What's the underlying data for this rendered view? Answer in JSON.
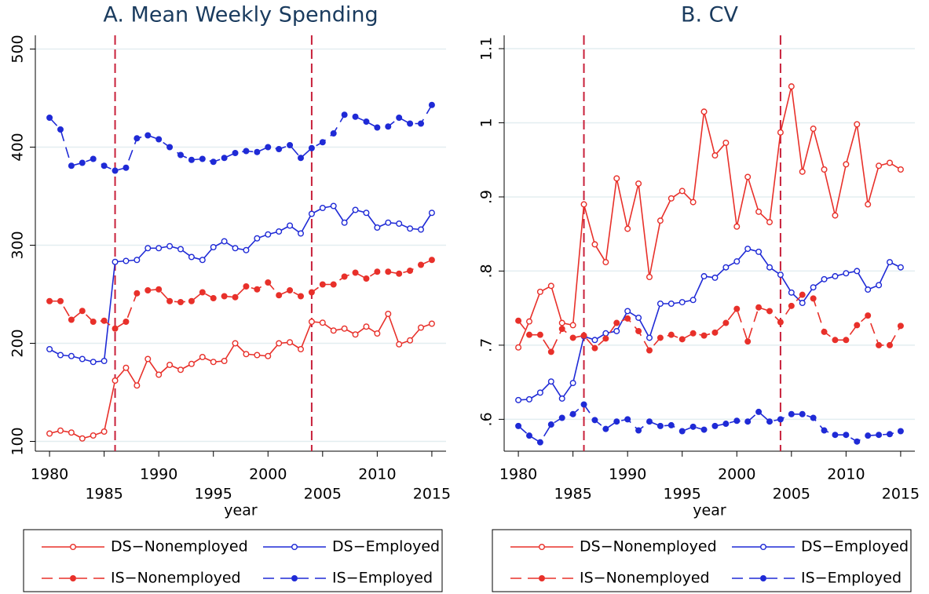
{
  "chart_data": [
    {
      "type": "line",
      "title": "A. Mean Weekly Spending",
      "x_label": "year",
      "x": [
        1980,
        1981,
        1982,
        1983,
        1984,
        1985,
        1986,
        1987,
        1988,
        1989,
        1990,
        1991,
        1992,
        1993,
        1994,
        1995,
        1996,
        1997,
        1998,
        1999,
        2000,
        2001,
        2002,
        2003,
        2004,
        2005,
        2006,
        2007,
        2008,
        2009,
        2010,
        2011,
        2012,
        2013,
        2014,
        2015
      ],
      "xlim": [
        1978.7,
        2016.3
      ],
      "xticks": [
        1980,
        1985,
        1990,
        1995,
        2000,
        2005,
        2010,
        2015
      ],
      "ylim": [
        90,
        514
      ],
      "yticks": [
        100,
        200,
        300,
        400,
        500
      ],
      "grid": true,
      "vlines": [
        1986,
        2004
      ],
      "vline_color": "#c8203a",
      "series": [
        {
          "name": "DS−Nonemployed",
          "color": "#e8302a",
          "dash": false,
          "marker": "open",
          "values": [
            108,
            111,
            109,
            103,
            106,
            110,
            162,
            175,
            157,
            184,
            168,
            178,
            173,
            179,
            186,
            181,
            182,
            200,
            189,
            188,
            187,
            200,
            201,
            194,
            222,
            221,
            213,
            215,
            209,
            217,
            210,
            230,
            199,
            203,
            216,
            220
          ]
        },
        {
          "name": "DS−Employed",
          "color": "#1f2ad6",
          "dash": false,
          "marker": "open",
          "values": [
            194,
            188,
            187,
            184,
            181,
            182,
            283,
            284,
            285,
            297,
            297,
            299,
            296,
            288,
            285,
            298,
            304,
            297,
            295,
            307,
            311,
            314,
            320,
            312,
            332,
            338,
            340,
            323,
            336,
            333,
            318,
            323,
            322,
            317,
            316,
            333
          ]
        },
        {
          "name": "IS−Nonemployed",
          "color": "#e8302a",
          "dash": true,
          "marker": "filled",
          "values": [
            243,
            243,
            224,
            233,
            222,
            223,
            215,
            222,
            251,
            254,
            255,
            243,
            242,
            243,
            252,
            246,
            248,
            247,
            258,
            255,
            262,
            249,
            254,
            248,
            252,
            260,
            260,
            268,
            272,
            266,
            273,
            273,
            271,
            274,
            280,
            285
          ]
        },
        {
          "name": "IS−Employed",
          "color": "#1f2ad6",
          "dash": true,
          "marker": "filled",
          "values": [
            430,
            418,
            381,
            384,
            388,
            381,
            376,
            379,
            409,
            412,
            408,
            400,
            392,
            387,
            388,
            385,
            389,
            394,
            396,
            395,
            400,
            398,
            402,
            389,
            399,
            405,
            414,
            433,
            431,
            426,
            420,
            421,
            430,
            424,
            424,
            443
          ]
        }
      ]
    },
    {
      "type": "line",
      "title": "B. CV",
      "x_label": "year",
      "x": [
        1980,
        1981,
        1982,
        1983,
        1984,
        1985,
        1986,
        1987,
        1988,
        1989,
        1990,
        1991,
        1992,
        1993,
        1994,
        1995,
        1996,
        1997,
        1998,
        1999,
        2000,
        2001,
        2002,
        2003,
        2004,
        2005,
        2006,
        2007,
        2008,
        2009,
        2010,
        2011,
        2012,
        2013,
        2014,
        2015
      ],
      "xlim": [
        1978.7,
        2016.3
      ],
      "xticks": [
        1980,
        1985,
        1990,
        1995,
        2000,
        2005,
        2010,
        2015
      ],
      "ylim": [
        0.557,
        1.118
      ],
      "yticks": [
        {
          "value": 0.6,
          "label": ".6"
        },
        {
          "value": 0.7,
          "label": ".7"
        },
        {
          "value": 0.8,
          "label": ".8"
        },
        {
          "value": 0.9,
          "label": ".9"
        },
        1,
        1.1
      ],
      "grid": true,
      "vlines": [
        1986,
        2004
      ],
      "vline_color": "#c8203a",
      "series": [
        {
          "name": "DS−Nonemployed",
          "color": "#e8302a",
          "dash": false,
          "marker": "open",
          "values": [
            0.697,
            0.732,
            0.772,
            0.78,
            0.73,
            0.727,
            0.89,
            0.836,
            0.812,
            0.925,
            0.857,
            0.918,
            0.792,
            0.868,
            0.898,
            0.908,
            0.893,
            1.015,
            0.956,
            0.973,
            0.86,
            0.927,
            0.88,
            0.866,
            0.987,
            1.049,
            0.934,
            0.992,
            0.937,
            0.875,
            0.944,
            0.998,
            0.89,
            0.942,
            0.946,
            0.937
          ]
        },
        {
          "name": "DS−Employed",
          "color": "#1f2ad6",
          "dash": false,
          "marker": "open",
          "values": [
            0.626,
            0.627,
            0.636,
            0.651,
            0.628,
            0.649,
            0.712,
            0.707,
            0.716,
            0.719,
            0.746,
            0.737,
            0.71,
            0.756,
            0.756,
            0.758,
            0.761,
            0.793,
            0.791,
            0.805,
            0.813,
            0.83,
            0.826,
            0.805,
            0.795,
            0.771,
            0.757,
            0.778,
            0.789,
            0.793,
            0.797,
            0.8,
            0.775,
            0.781,
            0.812,
            0.805
          ]
        },
        {
          "name": "IS−Nonemployed",
          "color": "#e8302a",
          "dash": true,
          "marker": "filled",
          "values": [
            0.733,
            0.714,
            0.714,
            0.691,
            0.722,
            0.71,
            0.713,
            0.696,
            0.709,
            0.73,
            0.736,
            0.719,
            0.693,
            0.71,
            0.714,
            0.708,
            0.716,
            0.713,
            0.717,
            0.73,
            0.749,
            0.705,
            0.751,
            0.746,
            0.731,
            0.753,
            0.768,
            0.763,
            0.718,
            0.707,
            0.707,
            0.727,
            0.74,
            0.7,
            0.7,
            0.726
          ]
        },
        {
          "name": "IS−Employed",
          "color": "#1f2ad6",
          "dash": true,
          "marker": "filled",
          "values": [
            0.591,
            0.578,
            0.569,
            0.593,
            0.602,
            0.607,
            0.62,
            0.599,
            0.587,
            0.597,
            0.6,
            0.585,
            0.597,
            0.591,
            0.592,
            0.584,
            0.59,
            0.586,
            0.591,
            0.594,
            0.598,
            0.597,
            0.61,
            0.597,
            0.6,
            0.607,
            0.607,
            0.602,
            0.585,
            0.579,
            0.579,
            0.57,
            0.578,
            0.579,
            0.58,
            0.584
          ]
        }
      ]
    }
  ]
}
